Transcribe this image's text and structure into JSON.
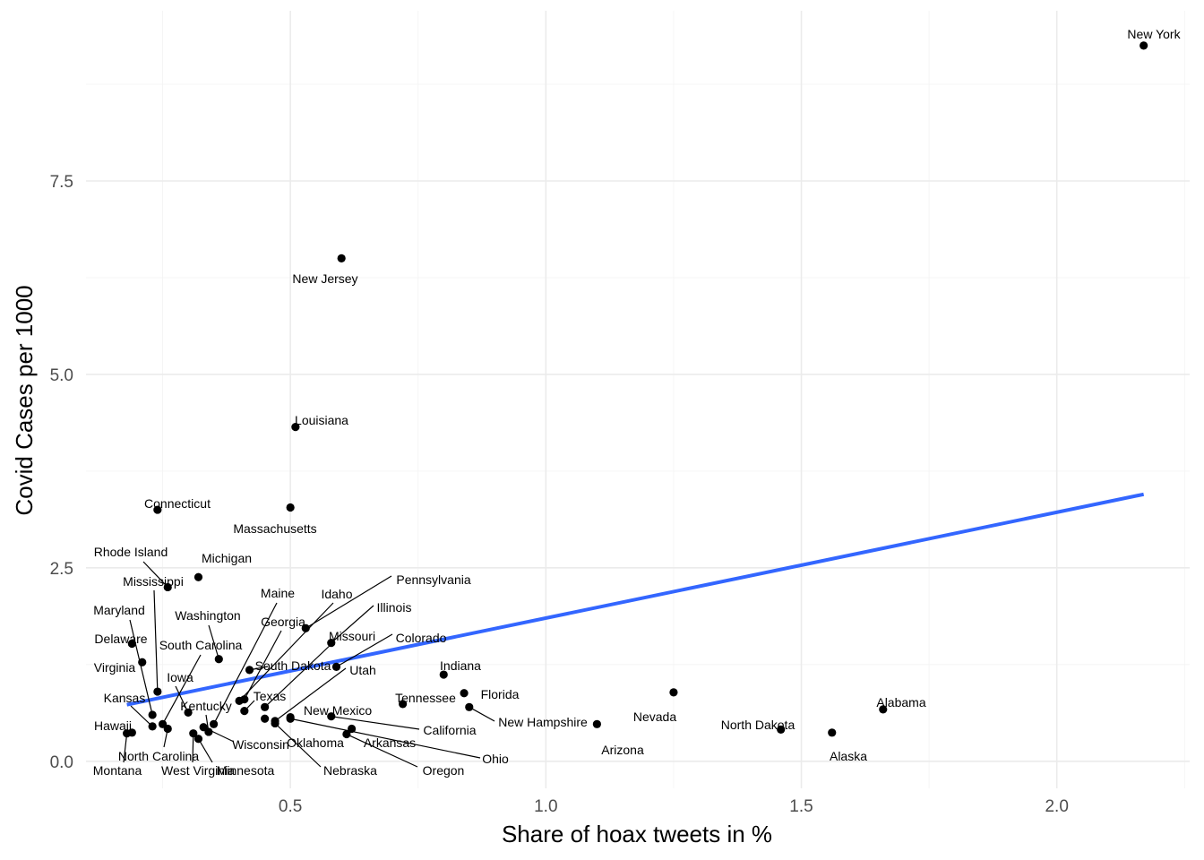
{
  "chart_data": {
    "type": "scatter",
    "xlabel": "Share of hoax tweets in %",
    "ylabel": "Covid Cases per 1000",
    "xlim": [
      0.1,
      2.26
    ],
    "ylim": [
      -0.35,
      9.7
    ],
    "x_ticks": [
      0.5,
      1.0,
      1.5,
      2.0
    ],
    "x_tick_labels": [
      "0.5",
      "1.0",
      "1.5",
      "2.0"
    ],
    "y_ticks": [
      0.0,
      2.5,
      5.0,
      7.5
    ],
    "y_tick_labels": [
      "0.0",
      "2.5",
      "5.0",
      "7.5"
    ],
    "grid": true,
    "legend": "none",
    "trend_line": {
      "x": [
        0.18,
        2.17
      ],
      "y": [
        0.73,
        3.45
      ],
      "color": "#3366ff"
    },
    "points": [
      {
        "name": "New York",
        "x": 2.17,
        "y": 9.25
      },
      {
        "name": "New Jersey",
        "x": 0.6,
        "y": 6.5
      },
      {
        "name": "Louisiana",
        "x": 0.51,
        "y": 4.32
      },
      {
        "name": "Connecticut",
        "x": 0.24,
        "y": 3.25
      },
      {
        "name": "Massachusetts",
        "x": 0.5,
        "y": 3.28
      },
      {
        "name": "Rhode Island",
        "x": 0.26,
        "y": 2.25
      },
      {
        "name": "Michigan",
        "x": 0.32,
        "y": 2.38
      },
      {
        "name": "Mississippi",
        "x": 0.24,
        "y": 0.9
      },
      {
        "name": "Maryland",
        "x": 0.23,
        "y": 0.6
      },
      {
        "name": "Delaware",
        "x": 0.19,
        "y": 1.52
      },
      {
        "name": "Virginia",
        "x": 0.21,
        "y": 1.28
      },
      {
        "name": "Kansas",
        "x": 0.23,
        "y": 0.45
      },
      {
        "name": "Hawaii",
        "x": 0.19,
        "y": 0.37
      },
      {
        "name": "Montana",
        "x": 0.18,
        "y": 0.36
      },
      {
        "name": "North Carolina",
        "x": 0.26,
        "y": 0.42
      },
      {
        "name": "West Virginia",
        "x": 0.31,
        "y": 0.36
      },
      {
        "name": "Minnesota",
        "x": 0.32,
        "y": 0.29
      },
      {
        "name": "Iowa",
        "x": 0.3,
        "y": 0.63
      },
      {
        "name": "South Carolina",
        "x": 0.25,
        "y": 0.48
      },
      {
        "name": "Washington",
        "x": 0.36,
        "y": 1.32
      },
      {
        "name": "Kentucky",
        "x": 0.34,
        "y": 0.38
      },
      {
        "name": "Wisconsin",
        "x": 0.33,
        "y": 0.44
      },
      {
        "name": "Maine",
        "x": 0.35,
        "y": 0.48
      },
      {
        "name": "Georgia",
        "x": 0.41,
        "y": 0.8
      },
      {
        "name": "Texas",
        "x": 0.41,
        "y": 0.65
      },
      {
        "name": "South Dakota",
        "x": 0.42,
        "y": 1.18
      },
      {
        "name": "Idaho",
        "x": 0.4,
        "y": 0.78
      },
      {
        "name": "Pennsylvania",
        "x": 0.53,
        "y": 1.72
      },
      {
        "name": "Illinois",
        "x": 0.58,
        "y": 1.53
      },
      {
        "name": "Missouri",
        "x": 0.45,
        "y": 0.7
      },
      {
        "name": "Colorado",
        "x": 0.59,
        "y": 1.22
      },
      {
        "name": "Utah",
        "x": 0.47,
        "y": 0.52
      },
      {
        "name": "New Mexico",
        "x": 0.5,
        "y": 0.57
      },
      {
        "name": "Oklahoma",
        "x": 0.45,
        "y": 0.55
      },
      {
        "name": "Nebraska",
        "x": 0.47,
        "y": 0.49
      },
      {
        "name": "Arkansas",
        "x": 0.62,
        "y": 0.42
      },
      {
        "name": "Oregon",
        "x": 0.61,
        "y": 0.35
      },
      {
        "name": "California",
        "x": 0.58,
        "y": 0.58
      },
      {
        "name": "Ohio",
        "x": 0.5,
        "y": 0.55
      },
      {
        "name": "Tennessee",
        "x": 0.72,
        "y": 0.74
      },
      {
        "name": "Indiana",
        "x": 0.8,
        "y": 1.12
      },
      {
        "name": "Florida",
        "x": 0.84,
        "y": 0.88
      },
      {
        "name": "New Hampshire",
        "x": 0.85,
        "y": 0.7
      },
      {
        "name": "Arizona",
        "x": 1.1,
        "y": 0.48
      },
      {
        "name": "Nevada",
        "x": 1.25,
        "y": 0.89
      },
      {
        "name": "North Dakota",
        "x": 1.46,
        "y": 0.41
      },
      {
        "name": "Alaska",
        "x": 1.56,
        "y": 0.37
      },
      {
        "name": "Alabama",
        "x": 1.66,
        "y": 0.67
      }
    ]
  }
}
